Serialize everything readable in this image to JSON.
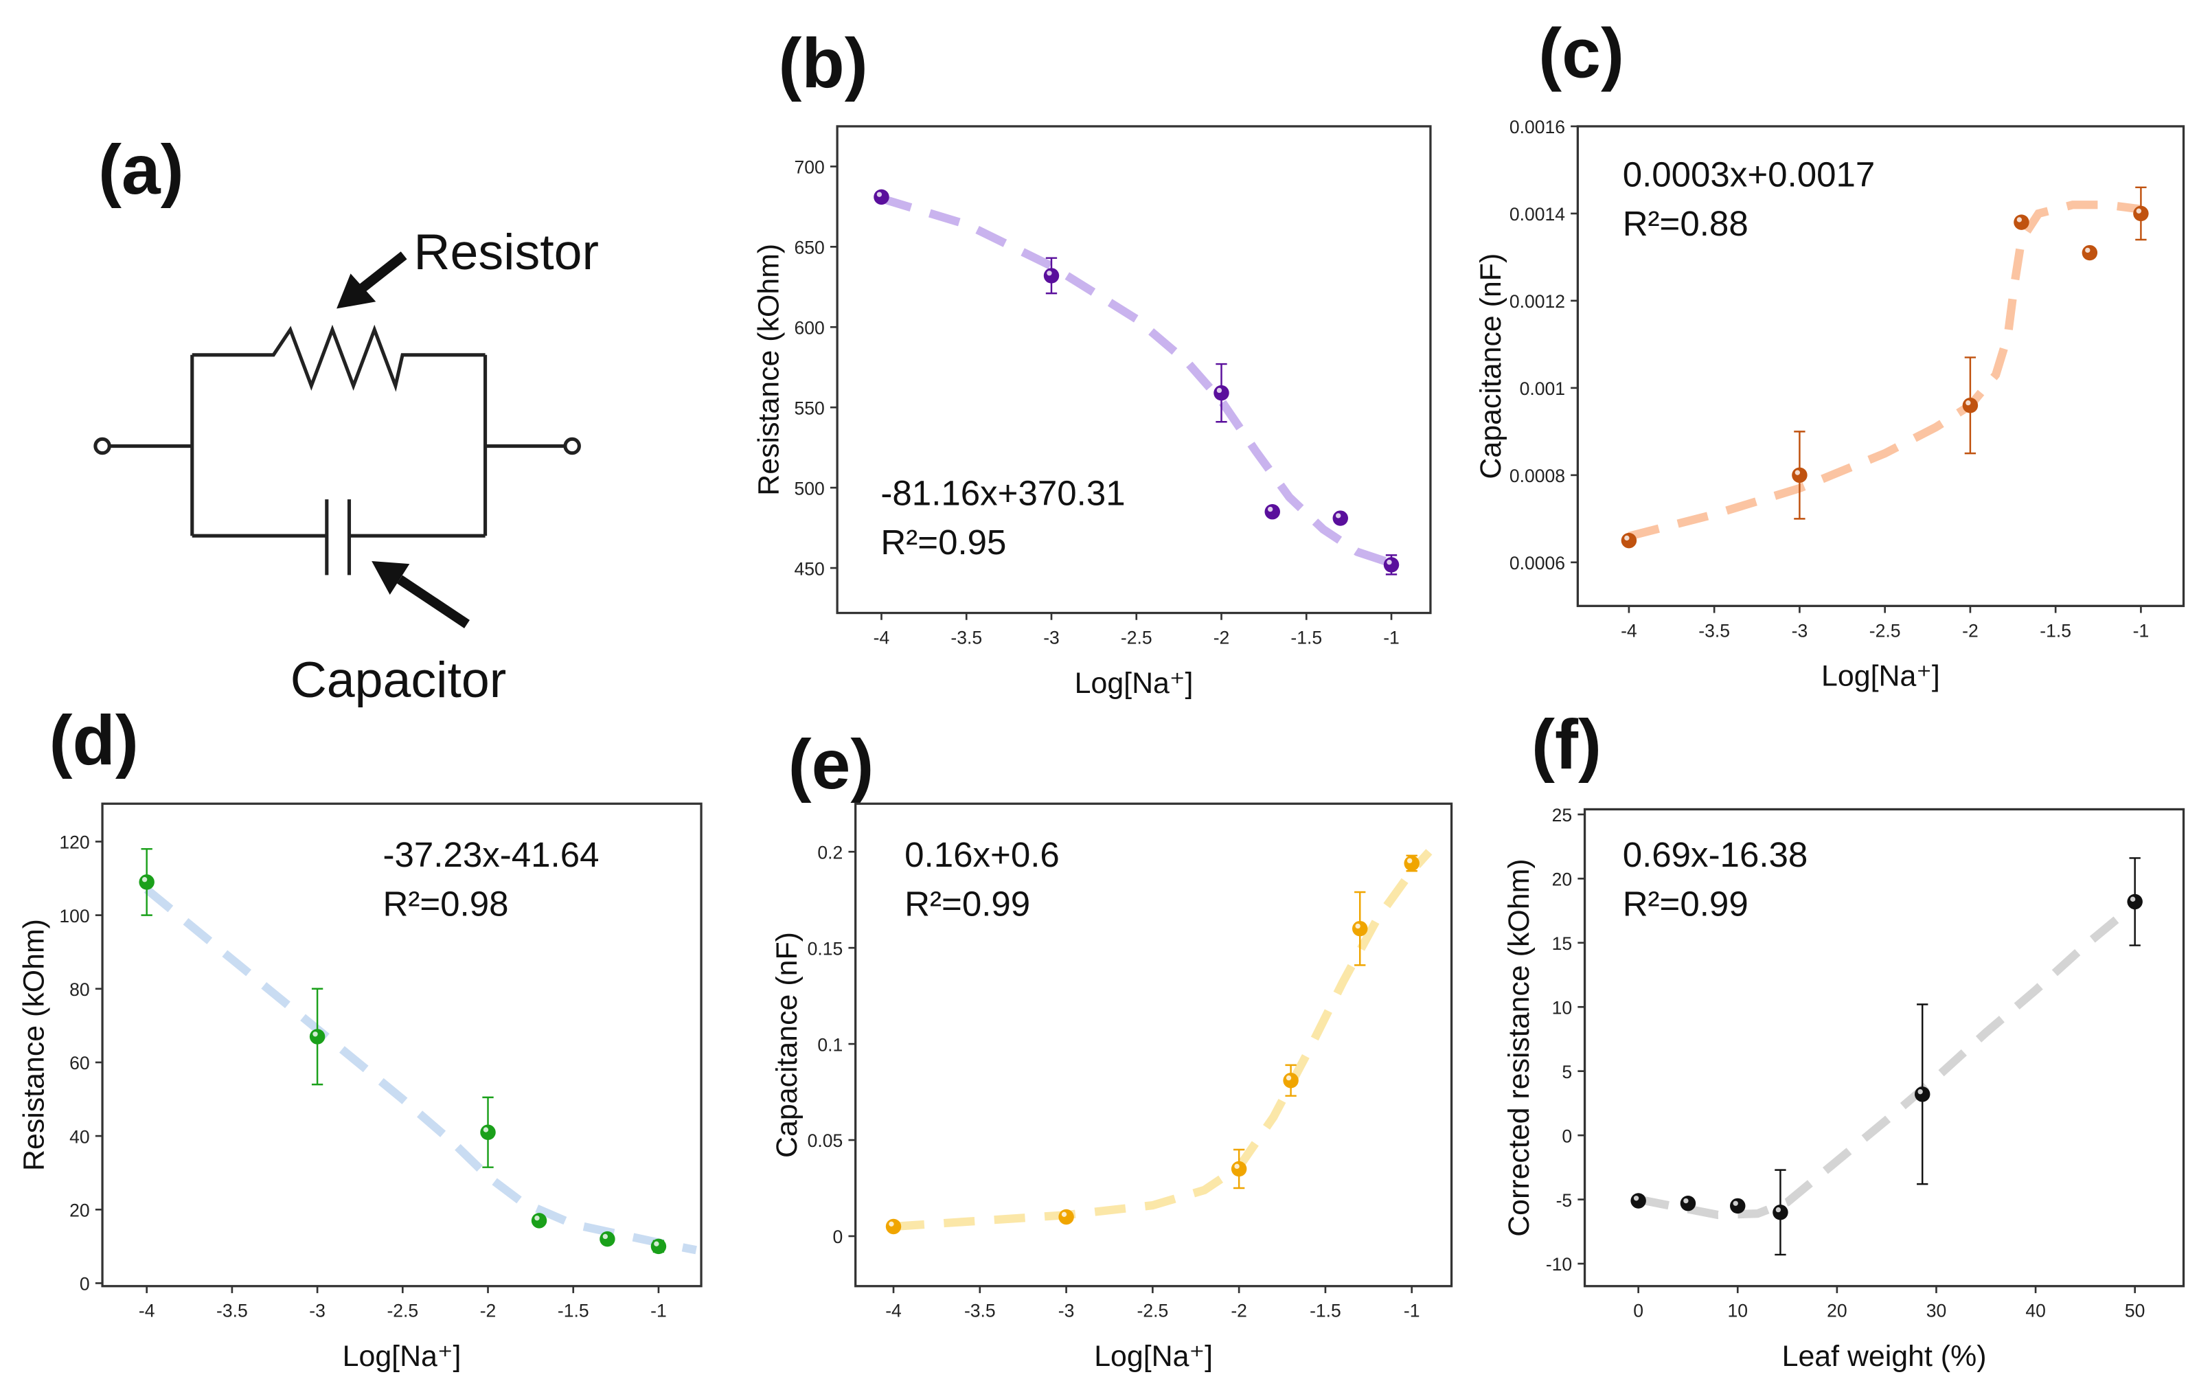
{
  "panel_labels": {
    "a": "(a)",
    "b": "(b)",
    "c": "(c)",
    "d": "(d)",
    "e": "(e)",
    "f": "(f)"
  },
  "circuit": {
    "resistor_label": "Resistor",
    "capacitor_label": "Capacitor"
  },
  "chart_data": [
    {
      "id": "b",
      "type": "scatter",
      "xlabel": "Log[Na⁺]",
      "ylabel": "Resistance (kOhm)",
      "xlim": [
        -4.26,
        -0.77
      ],
      "ylim": [
        422,
        725
      ],
      "xticks": [
        -4,
        -3.5,
        -3,
        -2.5,
        -2,
        -1.5,
        -1
      ],
      "xticklabels": [
        "-4",
        "-3.5",
        "-3",
        "-2.5",
        "-2",
        "-1.5",
        "-1"
      ],
      "yticks": [
        450,
        500,
        550,
        600,
        650,
        700
      ],
      "yticklabels": [
        "450",
        "500",
        "550",
        "600",
        "650",
        "700"
      ],
      "color": "#5a0f9c",
      "fit_color": "#c9b3ee",
      "points": [
        {
          "x": -4,
          "y": 681,
          "err": 0
        },
        {
          "x": -3,
          "y": 632,
          "err": 11
        },
        {
          "x": -2,
          "y": 559,
          "err": 18
        },
        {
          "x": -1.7,
          "y": 485,
          "err": 0
        },
        {
          "x": -1.3,
          "y": 481,
          "err": 0
        },
        {
          "x": -1,
          "y": 452,
          "err": 6
        }
      ],
      "fit": [
        [
          -4,
          680
        ],
        [
          -3.5,
          664
        ],
        [
          -3,
          638
        ],
        [
          -2.5,
          605
        ],
        [
          -2.2,
          578
        ],
        [
          -2,
          554
        ],
        [
          -1.8,
          523
        ],
        [
          -1.6,
          494
        ],
        [
          -1.4,
          474
        ],
        [
          -1.2,
          460
        ],
        [
          -1,
          453
        ]
      ],
      "equation": "-81.16x+370.31",
      "r2": "R²=0.95"
    },
    {
      "id": "c",
      "type": "scatter",
      "xlabel": "Log[Na⁺]",
      "ylabel": "Capacitance (nF)",
      "xlim": [
        -4.3,
        -0.75
      ],
      "ylim": [
        0.0005,
        0.0016
      ],
      "xticks": [
        -4,
        -3.5,
        -3,
        -2.5,
        -2,
        -1.5,
        -1
      ],
      "xticklabels": [
        "-4",
        "-3.5",
        "-3",
        "-2.5",
        "-2",
        "-1.5",
        "-1"
      ],
      "yticks": [
        0.0006,
        0.0008,
        0.001,
        0.0012,
        0.0014,
        0.0016
      ],
      "yticklabels": [
        "0.0006",
        "0.0008",
        "0.001",
        "0.0012",
        "0.0014",
        "0.0016"
      ],
      "color": "#c0520f",
      "fit_color": "#fbc4a2",
      "points": [
        {
          "x": -4,
          "y": 0.00065,
          "err": 0
        },
        {
          "x": -3,
          "y": 0.0008,
          "err": 0.0001
        },
        {
          "x": -2,
          "y": 0.00096,
          "err": 0.00011
        },
        {
          "x": -1.7,
          "y": 0.00138,
          "err": 0
        },
        {
          "x": -1.3,
          "y": 0.00131,
          "err": 0
        },
        {
          "x": -1,
          "y": 0.0014,
          "err": 6e-05
        }
      ],
      "fit": [
        [
          -4,
          0.00066
        ],
        [
          -3.5,
          0.00071
        ],
        [
          -3,
          0.00077
        ],
        [
          -2.5,
          0.00085
        ],
        [
          -2.2,
          0.00091
        ],
        [
          -2,
          0.00096
        ],
        [
          -1.85,
          0.00103
        ],
        [
          -1.78,
          0.00112
        ],
        [
          -1.74,
          0.00124
        ],
        [
          -1.7,
          0.00134
        ],
        [
          -1.6,
          0.0014
        ],
        [
          -1.4,
          0.00142
        ],
        [
          -1.2,
          0.00142
        ],
        [
          -1,
          0.00141
        ]
      ],
      "equation": "0.0003x+0.0017",
      "r2": "R²=0.88"
    },
    {
      "id": "d",
      "type": "scatter",
      "xlabel": "Log[Na⁺]",
      "ylabel": "Resistance (kOhm)",
      "xlim": [
        -4.26,
        -0.75
      ],
      "ylim": [
        -0.8,
        130.3
      ],
      "xticks": [
        -4,
        -3.5,
        -3,
        -2.5,
        -2,
        -1.5,
        -1
      ],
      "xticklabels": [
        "-4",
        "-3.5",
        "-3",
        "-2.5",
        "-2",
        "-1.5",
        "-1"
      ],
      "yticks": [
        0,
        20,
        40,
        60,
        80,
        100,
        120
      ],
      "yticklabels": [
        "0",
        "20",
        "40",
        "60",
        "80",
        "100",
        "120"
      ],
      "color": "#1aa01a",
      "fit_color": "#c9dcf2",
      "points": [
        {
          "x": -4,
          "y": 109,
          "err": 9
        },
        {
          "x": -3,
          "y": 67,
          "err": 13
        },
        {
          "x": -2,
          "y": 41,
          "err": 9.5
        },
        {
          "x": -1.7,
          "y": 17,
          "err": 1
        },
        {
          "x": -1.3,
          "y": 12,
          "err": 1
        },
        {
          "x": -1,
          "y": 10,
          "err": 1.5
        }
      ],
      "fit": [
        [
          -4,
          107
        ],
        [
          -3.5,
          88
        ],
        [
          -3,
          69
        ],
        [
          -2.5,
          50
        ],
        [
          -2.2,
          38
        ],
        [
          -2,
          29
        ],
        [
          -1.8,
          22
        ],
        [
          -1.5,
          16
        ],
        [
          -1.2,
          13
        ],
        [
          -1,
          11
        ],
        [
          -0.78,
          9
        ]
      ],
      "equation": "-37.23x-41.64",
      "r2": "R²=0.98"
    },
    {
      "id": "e",
      "type": "scatter",
      "xlabel": "Log[Na⁺]",
      "ylabel": "Capacitance (nF)",
      "xlim": [
        -4.22,
        -0.77
      ],
      "ylim": [
        -0.026,
        0.225
      ],
      "xticks": [
        -4,
        -3.5,
        -3,
        -2.5,
        -2,
        -1.5,
        -1
      ],
      "xticklabels": [
        "-4",
        "-3.5",
        "-3",
        "-2.5",
        "-2",
        "-1.5",
        "-1"
      ],
      "yticks": [
        0,
        0.05,
        0.1,
        0.15,
        0.2
      ],
      "yticklabels": [
        "0",
        "0.05",
        "0.1",
        "0.15",
        "0.2"
      ],
      "color": "#f0a500",
      "fit_color": "#fbe7a8",
      "points": [
        {
          "x": -4,
          "y": 0.005,
          "err": 0.002
        },
        {
          "x": -3,
          "y": 0.01,
          "err": 0.002
        },
        {
          "x": -2,
          "y": 0.035,
          "err": 0.01
        },
        {
          "x": -1.7,
          "y": 0.081,
          "err": 0.008
        },
        {
          "x": -1.3,
          "y": 0.16,
          "err": 0.019
        },
        {
          "x": -1,
          "y": 0.194,
          "err": 0.004
        }
      ],
      "fit": [
        [
          -4,
          0.005
        ],
        [
          -3.5,
          0.008
        ],
        [
          -3,
          0.011
        ],
        [
          -2.5,
          0.016
        ],
        [
          -2.2,
          0.024
        ],
        [
          -2,
          0.036
        ],
        [
          -1.8,
          0.062
        ],
        [
          -1.6,
          0.096
        ],
        [
          -1.4,
          0.132
        ],
        [
          -1.2,
          0.165
        ],
        [
          -1,
          0.19
        ],
        [
          -0.9,
          0.2
        ]
      ],
      "equation": "0.16x+0.6",
      "r2": "R²=0.99"
    },
    {
      "id": "f",
      "type": "scatter",
      "xlabel": "Leaf weight (%)",
      "ylabel": "Corrected resistance (kOhm)",
      "xlim": [
        -5.4,
        54.9
      ],
      "ylim": [
        -11.75,
        25.4
      ],
      "xticks": [
        0,
        10,
        20,
        30,
        40,
        50
      ],
      "xticklabels": [
        "0",
        "10",
        "20",
        "30",
        "40",
        "50"
      ],
      "yticks": [
        -10,
        -5,
        0,
        5,
        10,
        15,
        20,
        25
      ],
      "yticklabels": [
        "-10",
        "-5",
        "0",
        "5",
        "10",
        "15",
        "20",
        "25"
      ],
      "color": "#111111",
      "fit_color": "#d4d4d4",
      "points": [
        {
          "x": 0,
          "y": -5.1,
          "err": 0
        },
        {
          "x": 5,
          "y": -5.3,
          "err": 0
        },
        {
          "x": 10,
          "y": -5.5,
          "err": 0
        },
        {
          "x": 14.3,
          "y": -6,
          "err": 3.3
        },
        {
          "x": 28.6,
          "y": 3.2,
          "err": 7
        },
        {
          "x": 50,
          "y": 18.2,
          "err": 3.4
        }
      ],
      "fit": [
        [
          0,
          -5
        ],
        [
          4,
          -5.6
        ],
        [
          8,
          -6.2
        ],
        [
          12,
          -6.1
        ],
        [
          15,
          -5.2
        ],
        [
          20,
          -2
        ],
        [
          25,
          1.2
        ],
        [
          30,
          4.5
        ],
        [
          35,
          8
        ],
        [
          40,
          11.3
        ],
        [
          45,
          14.8
        ],
        [
          50,
          18
        ]
      ],
      "equation": "0.69x-16.38",
      "r2": "R²=0.99"
    }
  ]
}
